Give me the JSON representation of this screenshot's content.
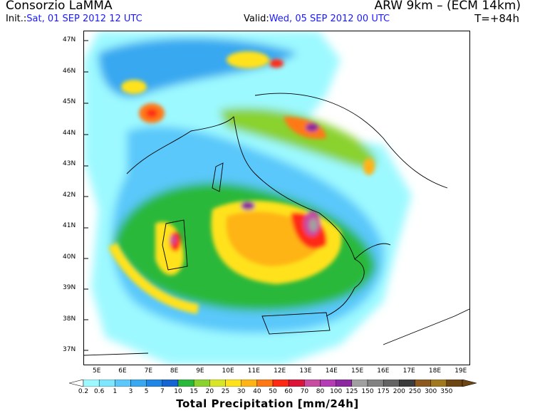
{
  "header": {
    "title_left": "Consorzio LaMMA",
    "title_right": "ARW 9km – (ECM 14km)",
    "init_label": "Init.:",
    "init_value": "Sat, 01 SEP 2012  12 UTC",
    "valid_label": "Valid:",
    "valid_value": "Wed, 05 SEP 2012  00 UTC",
    "forecast_hour": "T=+84h"
  },
  "map": {
    "lat_labels": [
      "47N",
      "46N",
      "45N",
      "44N",
      "43N",
      "42N",
      "41N",
      "40N",
      "39N",
      "38N",
      "37N"
    ],
    "lon_labels": [
      "5E",
      "6E",
      "7E",
      "8E",
      "9E",
      "10E",
      "11E",
      "12E",
      "13E",
      "14E",
      "15E",
      "16E",
      "17E",
      "18E",
      "19E"
    ]
  },
  "colorbar": {
    "title": "Total Precipitation [mm/24h]",
    "levels": [
      "0.2",
      "0.6",
      "1",
      "3",
      "5",
      "7",
      "10",
      "15",
      "20",
      "25",
      "30",
      "40",
      "50",
      "60",
      "70",
      "80",
      "100",
      "125",
      "150",
      "175",
      "200",
      "250",
      "300",
      "350"
    ],
    "colors": [
      "#9cf9ff",
      "#7ee6ff",
      "#5ac8fa",
      "#38a8f0",
      "#1e86e6",
      "#1464d2",
      "#2ab83a",
      "#8ad22e",
      "#d8e628",
      "#ffe21a",
      "#ffb414",
      "#ff7814",
      "#ff2a14",
      "#dc1438",
      "#c84ca0",
      "#b43cb4",
      "#8c28a0",
      "#a0a0a0",
      "#828282",
      "#646464",
      "#3c3c3c",
      "#8c5a1e",
      "#a0781e",
      "#6e4614"
    ]
  }
}
